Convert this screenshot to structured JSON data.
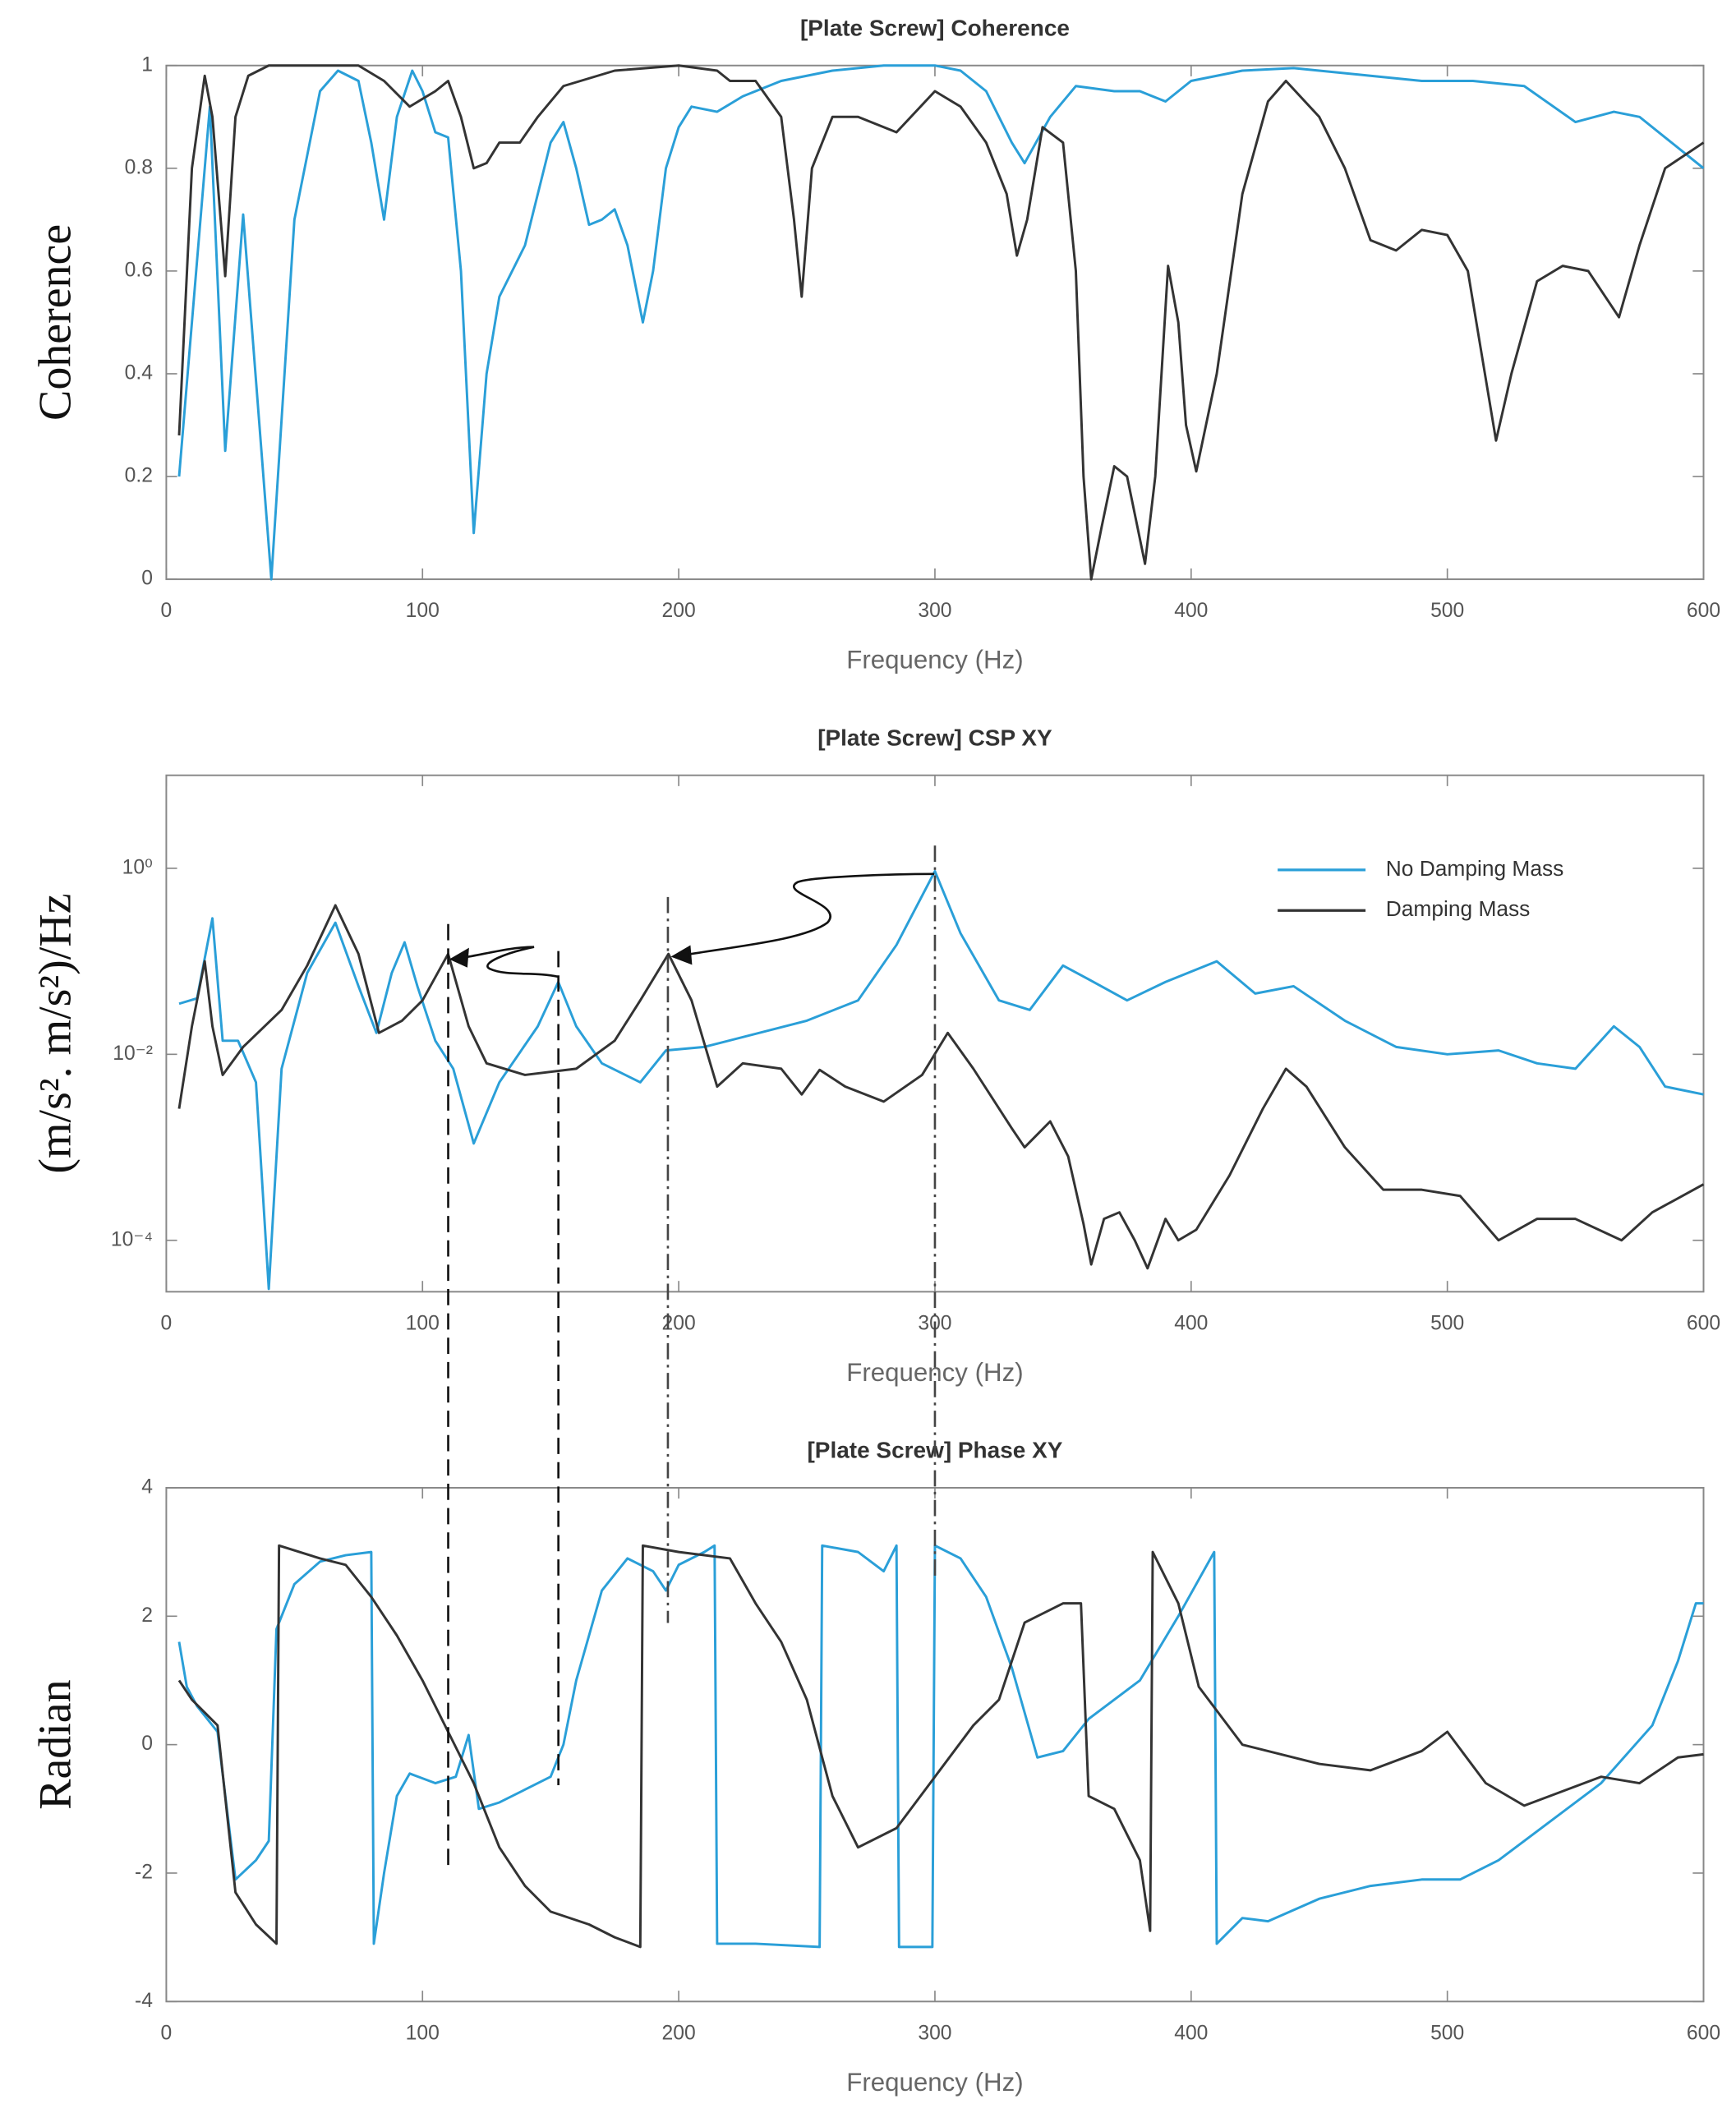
{
  "chart_data": [
    {
      "type": "line",
      "title": "[Plate Screw] Coherence",
      "x_label": "Frequency (Hz)",
      "y_label": "Coherence",
      "xlim": [
        0,
        600
      ],
      "xticks": [
        0,
        100,
        200,
        300,
        400,
        500,
        600
      ],
      "ylim": [
        0,
        1
      ],
      "yticks": [
        0,
        0.2,
        0.4,
        0.6,
        0.8,
        1
      ],
      "series": [
        {
          "color": "#2a9fd8",
          "x": [
            5,
            10,
            17,
            23,
            30,
            41,
            50,
            60,
            67,
            75,
            80,
            85,
            90,
            96,
            100,
            105,
            110,
            115,
            120,
            125,
            130,
            140,
            150,
            155,
            160,
            165,
            170,
            175,
            180,
            186,
            190,
            195,
            200,
            205,
            215,
            225,
            240,
            260,
            280,
            300,
            310,
            320,
            330,
            335,
            345,
            355,
            370,
            380,
            390,
            400,
            420,
            440,
            470,
            490,
            510,
            530,
            550,
            565,
            575,
            585,
            595,
            600
          ],
          "values": [
            0.2,
            0.5,
            0.92,
            0.25,
            0.71,
            0,
            0.7,
            0.95,
            0.99,
            0.97,
            0.85,
            0.7,
            0.9,
            0.99,
            0.95,
            0.87,
            0.86,
            0.6,
            0.09,
            0.4,
            0.55,
            0.65,
            0.85,
            0.89,
            0.8,
            0.69,
            0.7,
            0.72,
            0.65,
            0.5,
            0.6,
            0.8,
            0.88,
            0.92,
            0.91,
            0.94,
            0.97,
            0.99,
            1,
            1,
            0.99,
            0.95,
            0.85,
            0.81,
            0.9,
            0.96,
            0.95,
            0.95,
            0.93,
            0.97,
            0.99,
            0.995,
            0.98,
            0.97,
            0.97,
            0.96,
            0.89,
            0.91,
            0.9,
            0.86,
            0.82,
            0.8
          ]
        },
        {
          "color": "#333333",
          "x": [
            5,
            10,
            15,
            18,
            23,
            27,
            32,
            40,
            60,
            75,
            85,
            95,
            105,
            110,
            115,
            120,
            125,
            130,
            138,
            145,
            155,
            175,
            200,
            215,
            220,
            230,
            240,
            245,
            248,
            252,
            260,
            270,
            285,
            300,
            310,
            320,
            328,
            332,
            336,
            342,
            350,
            355,
            358,
            361,
            365,
            370,
            375,
            382,
            386,
            391,
            395,
            398,
            402,
            410,
            420,
            430,
            437,
            450,
            460,
            470,
            480,
            490,
            500,
            508,
            513,
            519,
            525,
            535,
            545,
            555,
            567,
            575,
            585,
            600
          ],
          "values": [
            0.28,
            0.8,
            0.98,
            0.9,
            0.59,
            0.9,
            0.98,
            1,
            1,
            1,
            0.97,
            0.92,
            0.95,
            0.97,
            0.9,
            0.8,
            0.81,
            0.85,
            0.85,
            0.9,
            0.96,
            0.99,
            1,
            0.99,
            0.97,
            0.97,
            0.9,
            0.7,
            0.55,
            0.8,
            0.9,
            0.9,
            0.87,
            0.95,
            0.92,
            0.85,
            0.75,
            0.63,
            0.7,
            0.88,
            0.85,
            0.6,
            0.2,
            0,
            0.1,
            0.22,
            0.2,
            0.03,
            0.2,
            0.61,
            0.5,
            0.3,
            0.21,
            0.4,
            0.75,
            0.93,
            0.97,
            0.9,
            0.8,
            0.66,
            0.64,
            0.68,
            0.67,
            0.6,
            0.45,
            0.27,
            0.4,
            0.58,
            0.61,
            0.6,
            0.51,
            0.65,
            0.8,
            0.85
          ]
        }
      ]
    },
    {
      "type": "line",
      "title": "[Plate Screw] CSP XY",
      "x_label": "Frequency (Hz)",
      "y_label": "(m/s². m/s²)/Hz",
      "xlim": [
        0,
        600
      ],
      "xticks": [
        0,
        100,
        200,
        300,
        400,
        500,
        600
      ],
      "log_y": true,
      "ylim": [
        2.8e-05,
        10
      ],
      "yticks": [
        {
          "value": 1,
          "label": "10⁰"
        },
        {
          "value": 0.01,
          "label": "10⁻²"
        },
        {
          "value": 0.0001,
          "label": "10⁻⁴"
        }
      ],
      "legend": "upper right",
      "series": [
        {
          "name": "No Damping Mass",
          "color": "#2a9fd8",
          "x": [
            5,
            12,
            18,
            22,
            28,
            35,
            40,
            45,
            55,
            66,
            75,
            82,
            88,
            93,
            98,
            105,
            112,
            120,
            130,
            145,
            153,
            160,
            170,
            185,
            195,
            210,
            250,
            270,
            285,
            300,
            310,
            325,
            337,
            350,
            360,
            375,
            390,
            410,
            425,
            440,
            460,
            480,
            500,
            520,
            535,
            550,
            565,
            575,
            585,
            600
          ],
          "values": [
            0.035,
            0.04,
            0.29,
            0.014,
            0.014,
            0.005,
            3e-05,
            0.007,
            0.075,
            0.26,
            0.054,
            0.017,
            0.075,
            0.16,
            0.054,
            0.014,
            0.007,
            0.0011,
            0.005,
            0.02,
            0.06,
            0.02,
            0.008,
            0.005,
            0.011,
            0.012,
            0.023,
            0.038,
            0.15,
            0.93,
            0.2,
            0.038,
            0.03,
            0.09,
            0.064,
            0.038,
            0.06,
            0.1,
            0.045,
            0.054,
            0.023,
            0.012,
            0.01,
            0.011,
            0.008,
            0.007,
            0.02,
            0.012,
            0.0045,
            0.0037
          ]
        },
        {
          "name": "Damping Mass",
          "color": "#333333",
          "x": [
            5,
            10,
            15,
            18,
            22,
            30,
            45,
            55,
            66,
            75,
            83,
            92,
            100,
            110,
            118,
            125,
            140,
            160,
            175,
            185,
            196,
            205,
            215,
            225,
            240,
            248,
            255,
            265,
            280,
            295,
            305,
            315,
            330,
            335,
            345,
            352,
            358,
            361,
            366,
            372,
            378,
            383,
            390,
            395,
            402,
            415,
            428,
            437,
            445,
            460,
            475,
            490,
            505,
            520,
            535,
            550,
            568,
            580,
            600
          ],
          "values": [
            0.0026,
            0.02,
            0.1,
            0.02,
            0.006,
            0.012,
            0.03,
            0.09,
            0.4,
            0.12,
            0.017,
            0.023,
            0.038,
            0.12,
            0.02,
            0.008,
            0.006,
            0.007,
            0.014,
            0.038,
            0.12,
            0.038,
            0.0045,
            0.008,
            0.007,
            0.0037,
            0.0068,
            0.0045,
            0.0031,
            0.006,
            0.017,
            0.007,
            0.0016,
            0.001,
            0.0019,
            0.0008,
            0.00015,
            5.5e-05,
            0.00017,
            0.0002,
            0.0001,
            5e-05,
            0.00017,
            0.0001,
            0.00013,
            0.0005,
            0.0026,
            0.007,
            0.0045,
            0.001,
            0.00035,
            0.00035,
            0.0003,
            0.0001,
            0.00017,
            0.00017,
            0.0001,
            0.0002,
            0.0004
          ]
        }
      ]
    },
    {
      "type": "line",
      "title": "[Plate Screw] Phase XY",
      "x_label": "Frequency (Hz)",
      "y_label": "Radian",
      "xlim": [
        0,
        600
      ],
      "xticks": [
        0,
        100,
        200,
        300,
        400,
        500,
        600
      ],
      "ylim": [
        -4,
        4
      ],
      "yticks": [
        -4,
        -2,
        0,
        2,
        4
      ],
      "series": [
        {
          "color": "#2a9fd8",
          "x": [
            5,
            8,
            12,
            20,
            27,
            35,
            40,
            43,
            50,
            60,
            70,
            80,
            81,
            85,
            90,
            95,
            105,
            113,
            118,
            122,
            130,
            140,
            150,
            155,
            160,
            170,
            180,
            190,
            195,
            200,
            210,
            214,
            215,
            230,
            255,
            256,
            270,
            280,
            285,
            286,
            299,
            300,
            310,
            320,
            330,
            340,
            350,
            360,
            380,
            395,
            409,
            410,
            420,
            430,
            450,
            470,
            490,
            505,
            520,
            540,
            560,
            580,
            590,
            597,
            600
          ],
          "values": [
            1.6,
            0.9,
            0.6,
            0.2,
            -2.1,
            -1.8,
            -1.5,
            1.8,
            2.5,
            2.85,
            2.95,
            3,
            -3.1,
            -2,
            -0.8,
            -0.45,
            -0.6,
            -0.5,
            0.15,
            -1,
            -0.9,
            -0.7,
            -0.5,
            0,
            1,
            2.4,
            2.9,
            2.7,
            2.4,
            2.8,
            3,
            3.1,
            -3.1,
            -3.1,
            -3.15,
            3.1,
            3,
            2.7,
            3.1,
            -3.15,
            -3.15,
            3.1,
            2.9,
            2.3,
            1.2,
            -0.2,
            -0.1,
            0.4,
            1,
            2,
            3,
            -3.1,
            -2.7,
            -2.75,
            -2.4,
            -2.2,
            -2.1,
            -2.1,
            -1.8,
            -1.2,
            -0.6,
            0.3,
            1.3,
            2.2,
            2.2
          ]
        },
        {
          "color": "#333333",
          "x": [
            5,
            10,
            20,
            27,
            35,
            43,
            44,
            60,
            70,
            80,
            90,
            100,
            110,
            120,
            130,
            140,
            150,
            165,
            175,
            185,
            186,
            200,
            220,
            230,
            240,
            250,
            260,
            270,
            285,
            300,
            315,
            325,
            335,
            350,
            357,
            360,
            370,
            380,
            384,
            385,
            395,
            403,
            420,
            450,
            470,
            490,
            500,
            515,
            530,
            560,
            575,
            590,
            600
          ],
          "values": [
            1,
            0.7,
            0.3,
            -2.3,
            -2.8,
            -3.1,
            3.1,
            2.9,
            2.8,
            2.3,
            1.7,
            1,
            0.2,
            -0.6,
            -1.6,
            -2.2,
            -2.6,
            -2.8,
            -3,
            -3.15,
            3.1,
            3,
            2.9,
            2.2,
            1.6,
            0.7,
            -0.8,
            -1.6,
            -1.3,
            -0.5,
            0.3,
            0.7,
            1.9,
            2.2,
            2.2,
            -0.8,
            -1,
            -1.8,
            -2.9,
            3,
            2.2,
            0.9,
            0,
            -0.3,
            -0.4,
            -0.1,
            0.2,
            -0.6,
            -0.95,
            -0.5,
            -0.6,
            -0.2,
            -0.15
          ]
        }
      ]
    }
  ]
}
